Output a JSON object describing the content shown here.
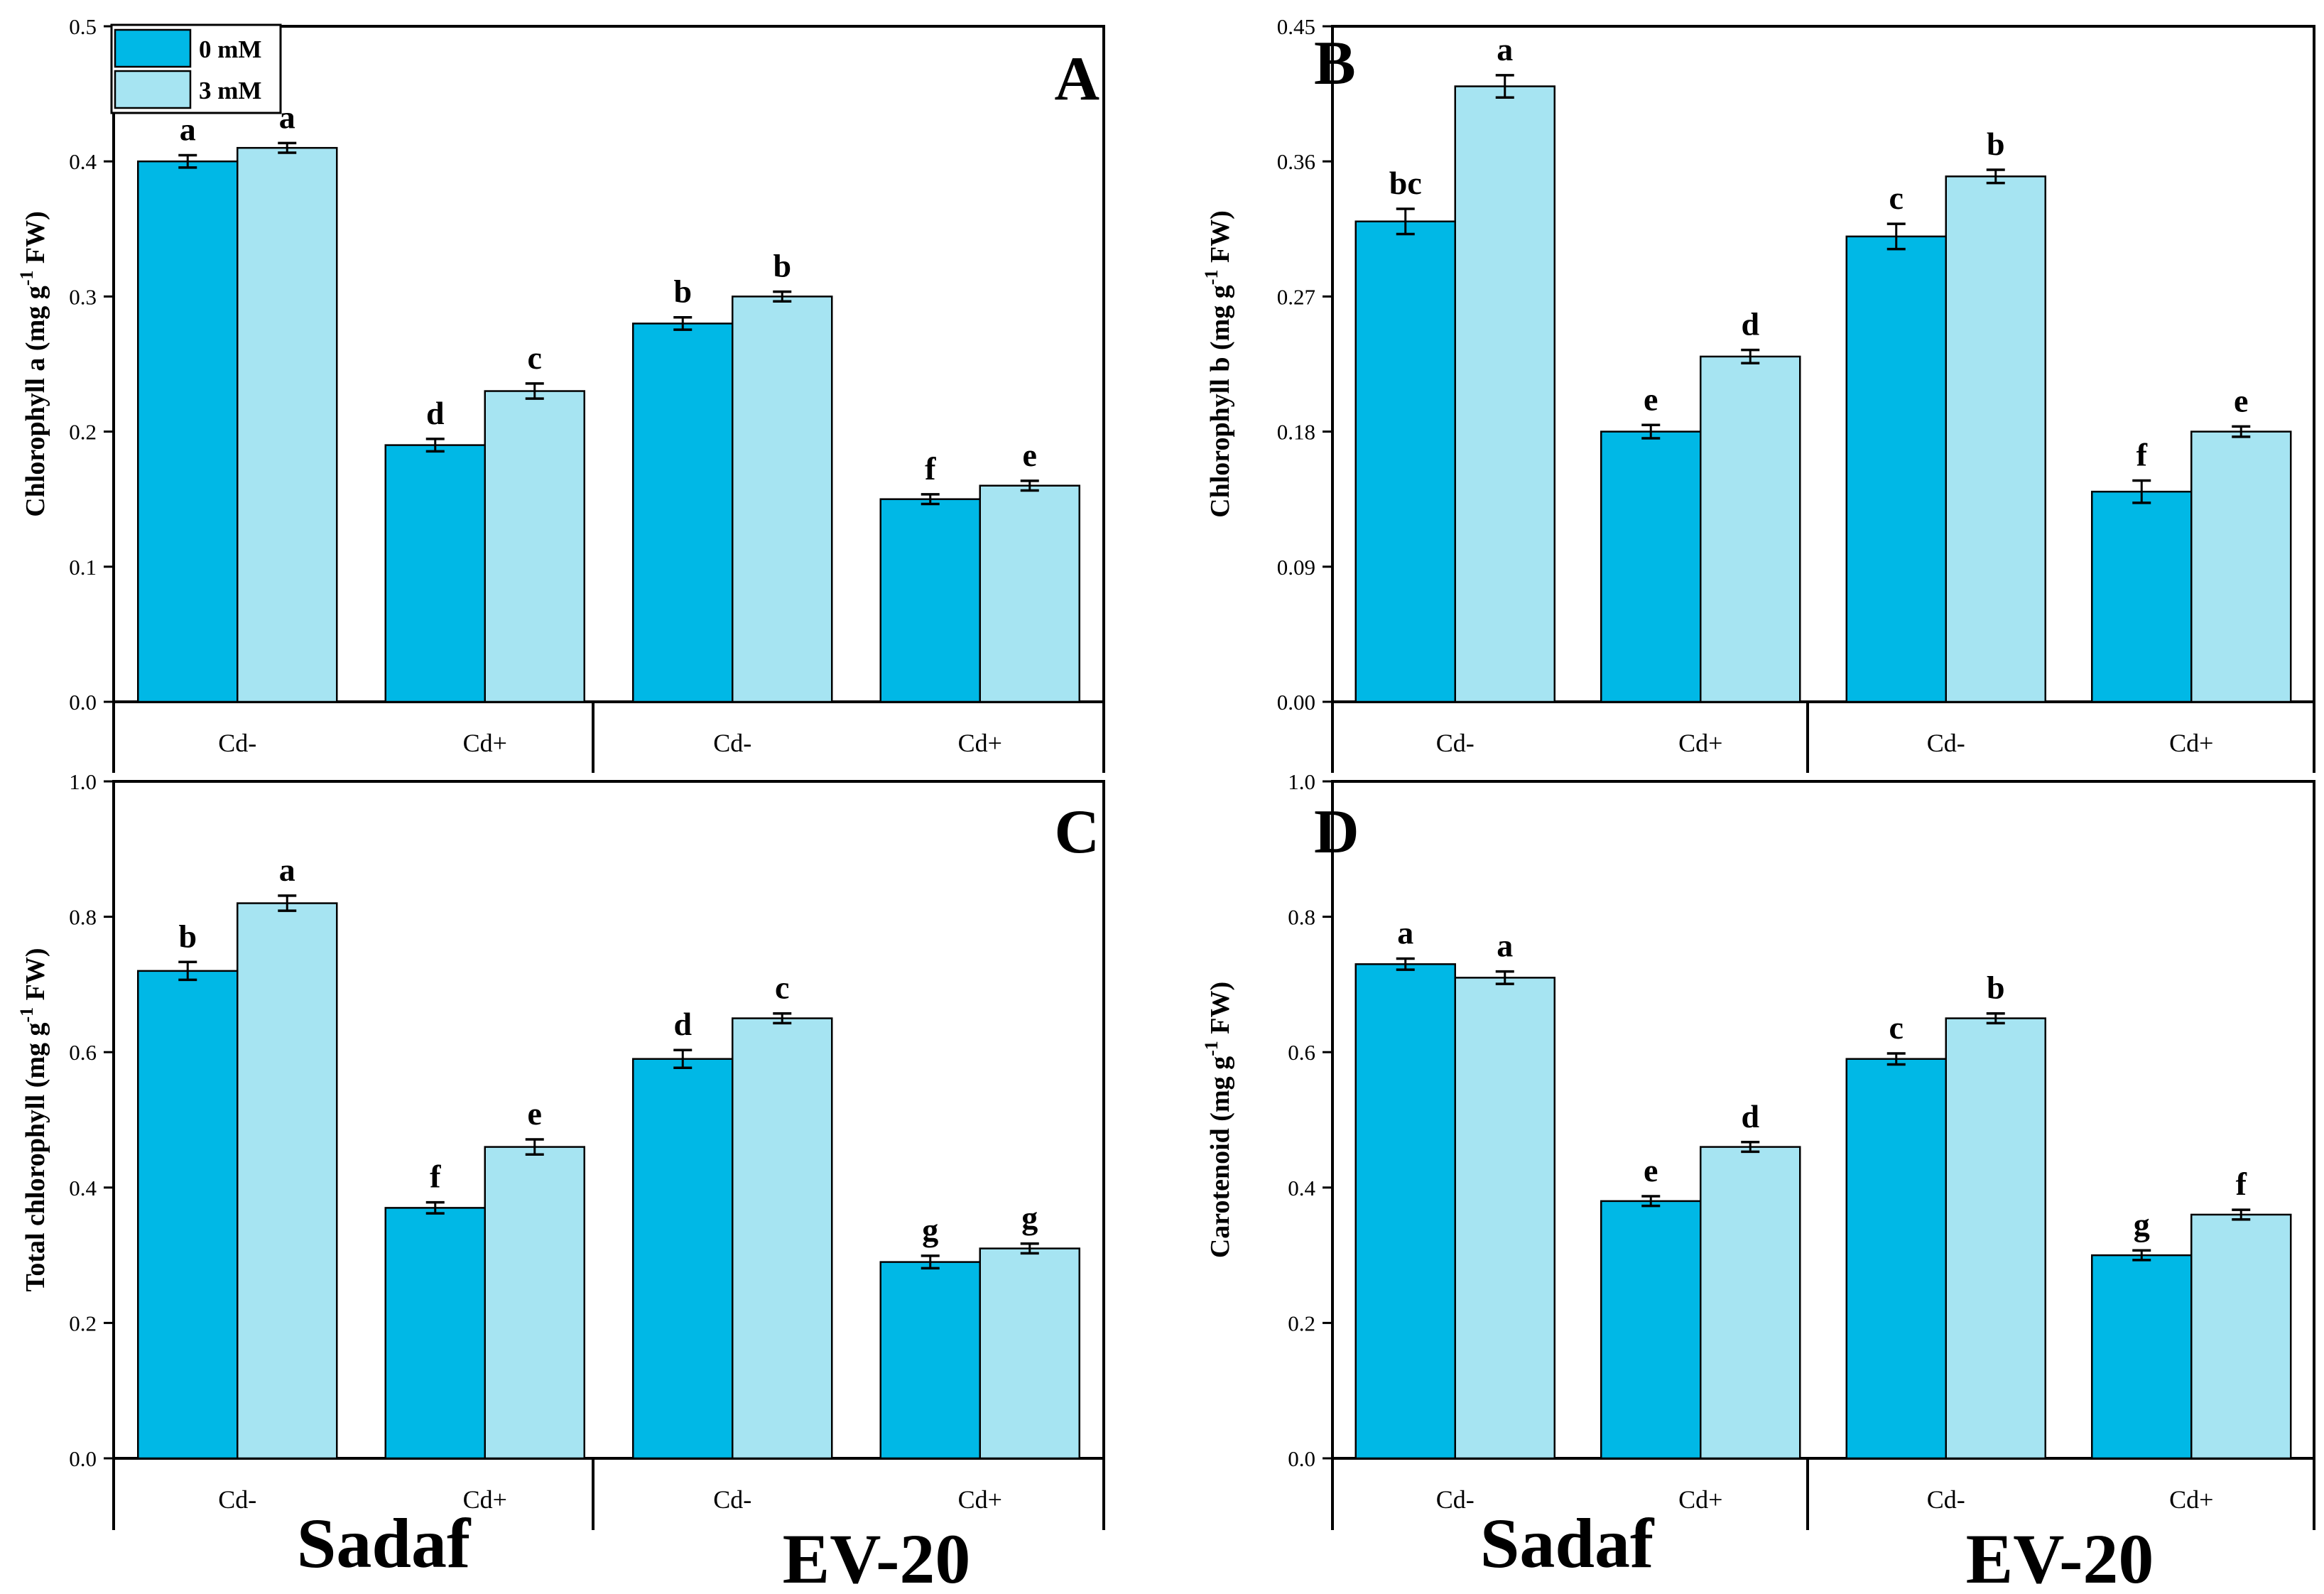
{
  "colors": {
    "series0": "#00b8e6",
    "series1": "#a6e4f2",
    "stroke": "#000000"
  },
  "legend": [
    {
      "name": "0 mM",
      "color": "#00b8e6"
    },
    {
      "name": "3 mM",
      "color": "#a6e4f2"
    }
  ],
  "cultivars": [
    "Sadaf",
    "EV-20"
  ],
  "chart_data": [
    {
      "type": "bar",
      "panel": "A",
      "ylabel": "Chlorophyll a (mg g-1 FW)",
      "ylabel_main": "Chlorophyll a (mg g",
      "ylabel_sup": "-1",
      "ylabel_end": " FW)",
      "categories": [
        "Cd-",
        "Cd+",
        "Cd-",
        "Cd+"
      ],
      "groups": [
        "Sadaf",
        "Sadaf",
        "EV-20",
        "EV-20"
      ],
      "ylim": [
        0,
        0.5
      ],
      "yticks": [
        "0.0",
        "0.1",
        "0.2",
        "0.3",
        "0.4",
        "0.5"
      ],
      "series": [
        {
          "name": "0 mM",
          "values": [
            0.4,
            0.19,
            0.28,
            0.15
          ],
          "errors": [
            0.003,
            0.003,
            0.003,
            0.002
          ],
          "letters": [
            "a",
            "d",
            "b",
            "f"
          ]
        },
        {
          "name": "3 mM",
          "values": [
            0.41,
            0.23,
            0.3,
            0.16
          ],
          "errors": [
            0.002,
            0.004,
            0.002,
            0.002
          ],
          "letters": [
            "a",
            "c",
            "b",
            "e"
          ]
        }
      ]
    },
    {
      "type": "bar",
      "panel": "B",
      "ylabel": "Chlorophyll b (mg g-1 FW)",
      "ylabel_main": "Chlorophyll b (mg g",
      "ylabel_sup": "-1",
      "ylabel_end": " FW)",
      "categories": [
        "Cd-",
        "Cd+",
        "Cd-",
        "Cd+"
      ],
      "groups": [
        "Sadaf",
        "Sadaf",
        "EV-20",
        "EV-20"
      ],
      "ylim": [
        0,
        0.45
      ],
      "yticks": [
        "0.00",
        "0.09",
        "0.18",
        "0.27",
        "0.36",
        "0.45"
      ],
      "series": [
        {
          "name": "0 mM",
          "values": [
            0.32,
            0.18,
            0.31,
            0.14
          ],
          "errors": [
            0.007,
            0.003,
            0.007,
            0.006
          ],
          "letters": [
            "bc",
            "e",
            "c",
            "f"
          ]
        },
        {
          "name": "3 mM",
          "values": [
            0.41,
            0.23,
            0.35,
            0.18
          ],
          "errors": [
            0.006,
            0.003,
            0.003,
            0.002
          ],
          "letters": [
            "a",
            "d",
            "b",
            "e"
          ]
        }
      ]
    },
    {
      "type": "bar",
      "panel": "C",
      "ylabel": "Total chlorophyll (mg g-1 FW)",
      "ylabel_main": "Total chlorophyll (mg g",
      "ylabel_sup": "-1",
      "ylabel_end": " FW)",
      "categories": [
        "Cd-",
        "Cd+",
        "Cd-",
        "Cd+"
      ],
      "groups": [
        "Sadaf",
        "Sadaf",
        "EV-20",
        "EV-20"
      ],
      "ylim": [
        0,
        1.0
      ],
      "yticks": [
        "0.0",
        "0.2",
        "0.4",
        "0.6",
        "0.8",
        "1.0"
      ],
      "series": [
        {
          "name": "0 mM",
          "values": [
            0.72,
            0.37,
            0.59,
            0.29
          ],
          "errors": [
            0.01,
            0.005,
            0.01,
            0.006
          ],
          "letters": [
            "b",
            "f",
            "d",
            "g"
          ]
        },
        {
          "name": "3 mM",
          "values": [
            0.82,
            0.46,
            0.65,
            0.31
          ],
          "errors": [
            0.008,
            0.008,
            0.004,
            0.004
          ],
          "letters": [
            "a",
            "e",
            "c",
            "g"
          ]
        }
      ]
    },
    {
      "type": "bar",
      "panel": "D",
      "ylabel": "Carotenoid (mg g-1 FW)",
      "ylabel_main": "Carotenoid (mg g",
      "ylabel_sup": "-1",
      "ylabel_end": " FW)",
      "categories": [
        "Cd-",
        "Cd+",
        "Cd-",
        "Cd+"
      ],
      "groups": [
        "Sadaf",
        "Sadaf",
        "EV-20",
        "EV-20"
      ],
      "ylim": [
        0,
        1.0
      ],
      "yticks": [
        "0.0",
        "0.2",
        "0.4",
        "0.6",
        "0.8",
        "1.0"
      ],
      "series": [
        {
          "name": "0 mM",
          "values": [
            0.73,
            0.38,
            0.59,
            0.3
          ],
          "errors": [
            0.005,
            0.004,
            0.005,
            0.004
          ],
          "letters": [
            "a",
            "e",
            "c",
            "g"
          ]
        },
        {
          "name": "3 mM",
          "values": [
            0.71,
            0.46,
            0.65,
            0.36
          ],
          "errors": [
            0.006,
            0.004,
            0.004,
            0.004
          ],
          "letters": [
            "a",
            "d",
            "b",
            "f"
          ]
        }
      ]
    }
  ]
}
